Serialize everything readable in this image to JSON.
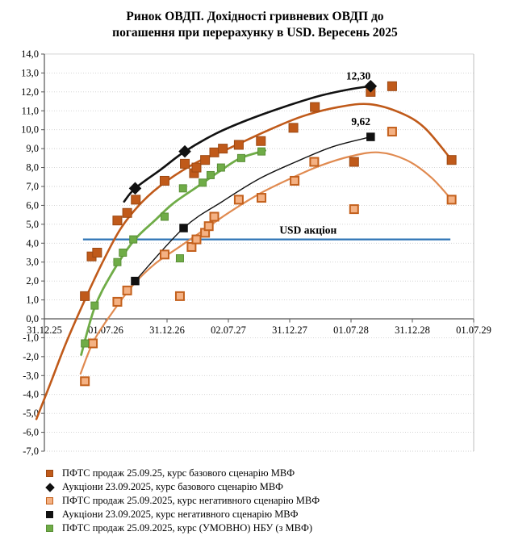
{
  "chart_data": {
    "type": "scatter",
    "title_line1": "Ринок ОВДП. Дохідності  гривневих ОВДП до",
    "title_line2": "погашення при перерахунку в USD. Вересень 2025",
    "grid": "horizontal-dotted",
    "legend_position": "bottom-left",
    "y_axis": {
      "min": -7,
      "max": 14,
      "step": 1,
      "tick_labels": [
        "14,0",
        "13,0",
        "12,0",
        "11,0",
        "10,0",
        "9,0",
        "8,0",
        "7,0",
        "6,0",
        "5,0",
        "4,0",
        "3,0",
        "2,0",
        "1,0",
        "0,0",
        "-1,0",
        "-2,0",
        "-3,0",
        "-4,0",
        "-5,0",
        "-6,0",
        "-7,0"
      ]
    },
    "x_axis": {
      "tick_labels": [
        "31.12.25",
        "01.07.26",
        "31.12.26",
        "02.07.27",
        "31.12.27",
        "01.07.28",
        "31.12.28",
        "01.07.29"
      ]
    },
    "ref_line": {
      "label": "USD акціон",
      "value": 4.2,
      "x_start": 0.63,
      "x_end": 6.62,
      "color": "#2E74B5",
      "label_x": 4.3,
      "label_y": 4.68
    },
    "annotations": [
      {
        "text": "12,30",
        "x": 5.12,
        "y": 12.82
      },
      {
        "text": "9,62",
        "x": 5.16,
        "y": 10.42
      }
    ],
    "series": [
      {
        "id": "pfts-base",
        "legend_label": "ПФТС продаж 25.09.25,  курс базового сценарію МВФ",
        "marker": "square",
        "size": 11,
        "fill": "#C05A1A",
        "stroke": "#9C4812",
        "stroke_width": 1,
        "trend_color": "#C05A1A",
        "trend_width": 2.6,
        "points": [
          [
            0.66,
            1.2
          ],
          [
            0.77,
            3.3
          ],
          [
            0.86,
            3.5
          ],
          [
            1.19,
            5.2
          ],
          [
            1.35,
            5.6
          ],
          [
            1.49,
            6.3
          ],
          [
            1.96,
            7.3
          ],
          [
            2.29,
            8.2
          ],
          [
            2.44,
            7.7
          ],
          [
            2.48,
            8.0
          ],
          [
            2.62,
            8.4
          ],
          [
            2.77,
            8.8
          ],
          [
            2.91,
            9.0
          ],
          [
            3.17,
            9.2
          ],
          [
            3.53,
            9.4
          ],
          [
            4.06,
            10.1
          ],
          [
            4.41,
            11.2
          ],
          [
            5.05,
            8.3
          ],
          [
            5.32,
            12.0
          ],
          [
            5.67,
            12.3
          ],
          [
            6.64,
            8.4
          ]
        ],
        "trend": [
          [
            -0.13,
            -5.3
          ],
          [
            0.1,
            -3.4
          ],
          [
            0.35,
            -1.3
          ],
          [
            0.66,
            1.0
          ],
          [
            0.95,
            3.0
          ],
          [
            1.25,
            4.8
          ],
          [
            1.6,
            6.2
          ],
          [
            2.0,
            7.3
          ],
          [
            2.5,
            8.3
          ],
          [
            3.0,
            9.0
          ],
          [
            3.6,
            9.9
          ],
          [
            4.2,
            10.7
          ],
          [
            4.8,
            11.2
          ],
          [
            5.3,
            11.35
          ],
          [
            5.8,
            10.9
          ],
          [
            6.2,
            10.1
          ],
          [
            6.64,
            8.4
          ]
        ]
      },
      {
        "id": "auction-base",
        "legend_label": "Аукціони 23.09.2025,  курс базового сценарію МВФ",
        "marker": "diamond",
        "size": 10,
        "fill": "#111111",
        "stroke": "#111111",
        "stroke_width": 1,
        "trend_color": "#111111",
        "trend_width": 2.6,
        "points": [
          [
            1.48,
            6.9
          ],
          [
            2.29,
            8.85
          ],
          [
            5.32,
            12.3
          ]
        ],
        "trend": [
          [
            1.3,
            6.2
          ],
          [
            1.48,
            6.9
          ],
          [
            1.9,
            7.9
          ],
          [
            2.29,
            8.85
          ],
          [
            2.8,
            9.8
          ],
          [
            3.3,
            10.5
          ],
          [
            3.9,
            11.2
          ],
          [
            4.5,
            11.8
          ],
          [
            5.0,
            12.15
          ],
          [
            5.32,
            12.3
          ]
        ]
      },
      {
        "id": "pfts-neg",
        "legend_label": "ПФТС продаж 25.09.2025,  курс негативного сценарію МВФ",
        "marker": "square",
        "size": 10,
        "fill": "#F4B183",
        "stroke": "#C3601C",
        "stroke_width": 2,
        "trend_color": "#E08A50",
        "trend_width": 2.2,
        "points": [
          [
            0.66,
            -3.3
          ],
          [
            0.79,
            -1.3
          ],
          [
            1.19,
            0.9
          ],
          [
            1.35,
            1.5
          ],
          [
            1.96,
            3.4
          ],
          [
            2.21,
            1.2
          ],
          [
            2.4,
            3.8
          ],
          [
            2.48,
            4.2
          ],
          [
            2.62,
            4.55
          ],
          [
            2.68,
            4.9
          ],
          [
            2.77,
            5.4
          ],
          [
            3.17,
            6.3
          ],
          [
            3.54,
            6.4
          ],
          [
            4.08,
            7.3
          ],
          [
            4.4,
            8.3
          ],
          [
            5.05,
            5.8
          ],
          [
            5.67,
            9.9
          ],
          [
            6.64,
            6.3
          ]
        ],
        "trend": [
          [
            0.59,
            -2.9
          ],
          [
            0.8,
            -1.2
          ],
          [
            1.1,
            0.3
          ],
          [
            1.45,
            1.8
          ],
          [
            1.8,
            2.9
          ],
          [
            2.2,
            3.8
          ],
          [
            2.6,
            4.7
          ],
          [
            3.0,
            5.6
          ],
          [
            3.5,
            6.6
          ],
          [
            4.0,
            7.4
          ],
          [
            4.5,
            8.1
          ],
          [
            5.0,
            8.6
          ],
          [
            5.45,
            8.8
          ],
          [
            5.9,
            8.4
          ],
          [
            6.3,
            7.5
          ],
          [
            6.64,
            6.3
          ]
        ]
      },
      {
        "id": "auction-neg",
        "legend_label": "Аукціони 23.09.2025,  курс негативного сценарію МВФ",
        "marker": "square",
        "size": 9.5,
        "fill": "#111111",
        "stroke": "#111111",
        "stroke_width": 1,
        "trend_color": "#111111",
        "trend_width": 1.4,
        "points": [
          [
            1.48,
            2.0
          ],
          [
            2.27,
            4.8
          ],
          [
            5.32,
            9.62
          ]
        ],
        "trend": [
          [
            1.48,
            2.0
          ],
          [
            2.27,
            4.8
          ],
          [
            2.9,
            6.2
          ],
          [
            3.5,
            7.4
          ],
          [
            4.1,
            8.3
          ],
          [
            4.7,
            9.1
          ],
          [
            5.32,
            9.62
          ]
        ]
      },
      {
        "id": "pfts-nbu",
        "legend_label": "ПФТС продаж 25.09.2025,  курс (УМОВНО) НБУ (з МВФ)",
        "marker": "square",
        "size": 9,
        "fill": "#6FAC47",
        "stroke": "#5A8F37",
        "stroke_width": 1,
        "trend_color": "#6FAC47",
        "trend_width": 2.8,
        "points": [
          [
            0.66,
            -1.3
          ],
          [
            0.82,
            0.7
          ],
          [
            1.19,
            3.0
          ],
          [
            1.28,
            3.5
          ],
          [
            1.45,
            4.2
          ],
          [
            1.96,
            5.4
          ],
          [
            2.21,
            3.2
          ],
          [
            2.26,
            6.9
          ],
          [
            2.58,
            7.2
          ],
          [
            2.71,
            7.6
          ],
          [
            2.88,
            8.0
          ],
          [
            3.21,
            8.5
          ],
          [
            3.54,
            8.85
          ]
        ],
        "trend": [
          [
            0.6,
            -1.9
          ],
          [
            0.82,
            0.6
          ],
          [
            1.1,
            2.4
          ],
          [
            1.45,
            4.1
          ],
          [
            1.8,
            5.2
          ],
          [
            2.1,
            6.1
          ],
          [
            2.5,
            7.0
          ],
          [
            2.9,
            7.9
          ],
          [
            3.2,
            8.5
          ],
          [
            3.6,
            8.9
          ]
        ]
      }
    ]
  }
}
